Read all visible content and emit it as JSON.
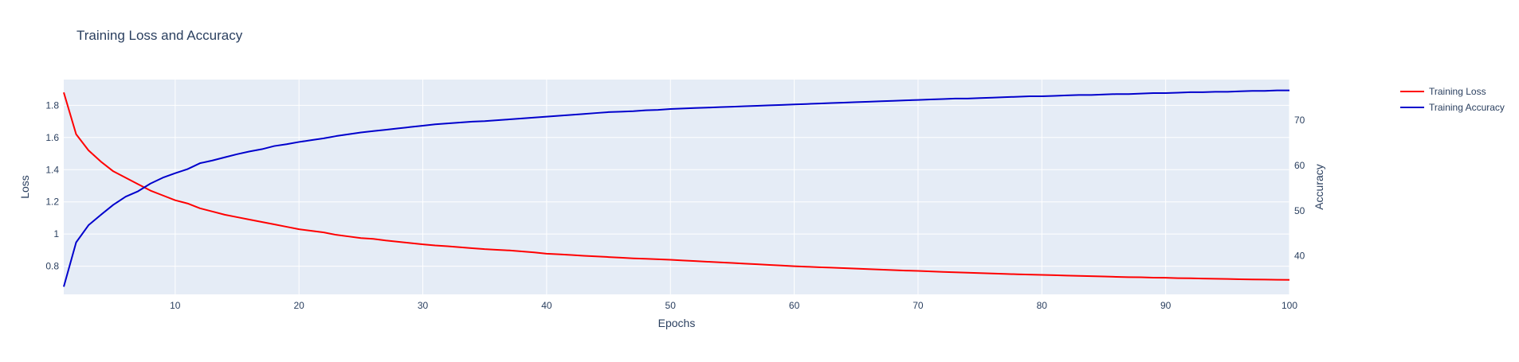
{
  "chart_data": {
    "type": "line",
    "title": "Training Loss and Accuracy",
    "xlabel": "Epochs",
    "ylabel": "Loss",
    "y2label": "Accuracy",
    "xlim": [
      1,
      100
    ],
    "ylim": [
      0.625,
      1.96
    ],
    "y2lim": [
      31.5,
      79.0
    ],
    "x_ticks": [
      10,
      20,
      30,
      40,
      50,
      60,
      70,
      80,
      90,
      100
    ],
    "y_ticks": [
      0.8,
      1,
      1.2,
      1.4,
      1.6,
      1.8
    ],
    "y2_ticks": [
      40,
      50,
      60,
      70
    ],
    "grid": true,
    "legend_position": "top-right",
    "x": [
      1,
      2,
      3,
      4,
      5,
      6,
      7,
      8,
      9,
      10,
      11,
      12,
      13,
      14,
      15,
      16,
      17,
      18,
      19,
      20,
      21,
      22,
      23,
      24,
      25,
      26,
      27,
      28,
      29,
      30,
      31,
      32,
      33,
      34,
      35,
      36,
      37,
      38,
      39,
      40,
      41,
      42,
      43,
      44,
      45,
      46,
      47,
      48,
      49,
      50,
      51,
      52,
      53,
      54,
      55,
      56,
      57,
      58,
      59,
      60,
      61,
      62,
      63,
      64,
      65,
      66,
      67,
      68,
      69,
      70,
      71,
      72,
      73,
      74,
      75,
      76,
      77,
      78,
      79,
      80,
      81,
      82,
      83,
      84,
      85,
      86,
      87,
      88,
      89,
      90,
      91,
      92,
      93,
      94,
      95,
      96,
      97,
      98,
      99,
      100
    ],
    "series": [
      {
        "name": "Training Loss",
        "axis": "y",
        "color": "#ff0000",
        "values": [
          1.88,
          1.62,
          1.52,
          1.45,
          1.39,
          1.35,
          1.31,
          1.27,
          1.24,
          1.21,
          1.19,
          1.16,
          1.14,
          1.12,
          1.105,
          1.09,
          1.075,
          1.06,
          1.045,
          1.03,
          1.02,
          1.01,
          0.995,
          0.985,
          0.975,
          0.97,
          0.96,
          0.952,
          0.944,
          0.936,
          0.929,
          0.924,
          0.918,
          0.912,
          0.906,
          0.902,
          0.898,
          0.892,
          0.886,
          0.878,
          0.874,
          0.87,
          0.865,
          0.861,
          0.857,
          0.853,
          0.849,
          0.846,
          0.843,
          0.84,
          0.836,
          0.832,
          0.828,
          0.824,
          0.82,
          0.816,
          0.812,
          0.808,
          0.804,
          0.8,
          0.797,
          0.794,
          0.791,
          0.788,
          0.785,
          0.782,
          0.779,
          0.776,
          0.773,
          0.771,
          0.768,
          0.765,
          0.762,
          0.76,
          0.757,
          0.755,
          0.752,
          0.75,
          0.748,
          0.746,
          0.744,
          0.742,
          0.74,
          0.738,
          0.736,
          0.734,
          0.732,
          0.731,
          0.729,
          0.728,
          0.726,
          0.725,
          0.723,
          0.722,
          0.721,
          0.719,
          0.718,
          0.717,
          0.716,
          0.715
        ]
      },
      {
        "name": "Training Accuracy",
        "axis": "y2",
        "color": "#0000cc",
        "values": [
          33.2,
          43.0,
          46.8,
          49.1,
          51.3,
          53.1,
          54.3,
          56.0,
          57.3,
          58.3,
          59.2,
          60.5,
          61.1,
          61.8,
          62.5,
          63.1,
          63.6,
          64.3,
          64.7,
          65.2,
          65.6,
          66.0,
          66.5,
          66.9,
          67.3,
          67.6,
          67.9,
          68.2,
          68.5,
          68.8,
          69.1,
          69.3,
          69.5,
          69.7,
          69.8,
          70.0,
          70.2,
          70.4,
          70.6,
          70.8,
          71.0,
          71.2,
          71.4,
          71.6,
          71.8,
          71.9,
          72.0,
          72.2,
          72.3,
          72.5,
          72.6,
          72.7,
          72.8,
          72.9,
          73.0,
          73.1,
          73.2,
          73.3,
          73.4,
          73.5,
          73.6,
          73.7,
          73.8,
          73.9,
          74.0,
          74.1,
          74.2,
          74.3,
          74.4,
          74.5,
          74.6,
          74.7,
          74.8,
          74.8,
          74.9,
          75.0,
          75.1,
          75.2,
          75.3,
          75.3,
          75.4,
          75.5,
          75.6,
          75.6,
          75.7,
          75.8,
          75.8,
          75.9,
          76.0,
          76.0,
          76.1,
          76.2,
          76.2,
          76.3,
          76.3,
          76.4,
          76.5,
          76.5,
          76.6,
          76.6
        ]
      }
    ]
  }
}
